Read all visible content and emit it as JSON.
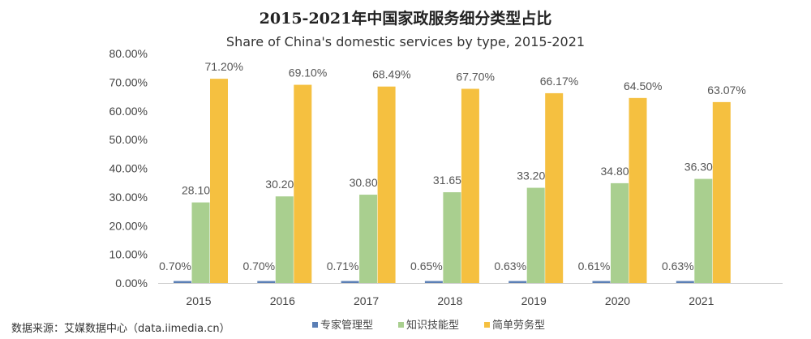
{
  "chart_data": {
    "type": "bar",
    "title": "2015-2021年中国家政服务细分类型占比",
    "subtitle": "Share of China's domestic services by type, 2015-2021",
    "categories": [
      "2015",
      "2016",
      "2017",
      "2018",
      "2019",
      "2020",
      "2021"
    ],
    "series": [
      {
        "name": "专家管理型",
        "color": "#5b7fb5",
        "values": [
          0.7,
          0.7,
          0.71,
          0.65,
          0.63,
          0.61,
          0.63
        ],
        "labels": [
          "0.70%",
          "0.70%",
          "0.71%",
          "0.65%",
          "0.63%",
          "0.61%",
          "0.63%"
        ]
      },
      {
        "name": "知识技能型",
        "color": "#a9cf8f",
        "values": [
          28.1,
          30.2,
          30.8,
          31.65,
          33.2,
          34.8,
          36.3
        ],
        "labels": [
          "28.10%",
          "30.20%",
          "30.80%",
          "31.65%",
          "33.20%",
          "34.80%",
          "36.30%"
        ]
      },
      {
        "name": "简单劳务型",
        "color": "#f5c040",
        "values": [
          71.2,
          69.1,
          68.49,
          67.7,
          66.17,
          64.5,
          63.07
        ],
        "labels": [
          "71.20%",
          "69.10%",
          "68.49%",
          "67.70%",
          "66.17%",
          "64.50%",
          "63.07%"
        ]
      }
    ],
    "yticks": [
      "0.00%",
      "10.00%",
      "20.00%",
      "30.00%",
      "40.00%",
      "50.00%",
      "60.00%",
      "70.00%",
      "80.00%"
    ],
    "ylim": [
      0,
      80
    ],
    "grid": false,
    "legend": "bottom"
  },
  "source": "数据来源：艾媒数据中心（data.iimedia.cn）"
}
